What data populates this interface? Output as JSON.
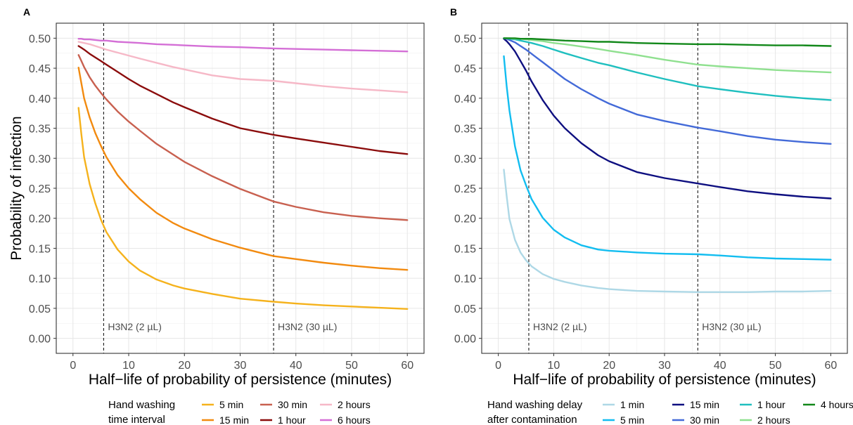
{
  "chart_data": [
    {
      "panel": "A",
      "type": "line",
      "xlabel": "Half−life of probability of persistence (minutes)",
      "ylabel": "Probability of infection",
      "xlim": [
        -3,
        63
      ],
      "ylim": [
        -0.025,
        0.525
      ],
      "xticks": [
        0,
        10,
        20,
        30,
        40,
        50,
        60
      ],
      "yticks": [
        0.0,
        0.05,
        0.1,
        0.15,
        0.2,
        0.25,
        0.3,
        0.35,
        0.4,
        0.45,
        0.5
      ],
      "grid": true,
      "reference_lines": [
        {
          "x": 5.5,
          "label_prefix": "H3N2 (2 ",
          "label_unit": "µL",
          "label_suffix": ")"
        },
        {
          "x": 36,
          "label_prefix": "H3N2 (30 ",
          "label_unit": "µL",
          "label_suffix": ")"
        }
      ],
      "legend": {
        "position": "bottom",
        "title": [
          "Hand washing",
          "time interval"
        ]
      },
      "x": [
        1,
        1.5,
        2,
        3,
        4,
        5,
        6,
        8,
        10,
        12,
        15,
        18,
        20,
        25,
        30,
        36,
        40,
        45,
        50,
        55,
        60
      ],
      "series": [
        {
          "name": "5 min",
          "color": "#f5b21c",
          "values": [
            0.384,
            0.34,
            0.302,
            0.257,
            0.225,
            0.198,
            0.177,
            0.148,
            0.128,
            0.113,
            0.098,
            0.088,
            0.083,
            0.074,
            0.066,
            0.061,
            0.058,
            0.055,
            0.053,
            0.051,
            0.049
          ]
        },
        {
          "name": "15 min",
          "color": "#f28a0f",
          "values": [
            0.451,
            0.425,
            0.4,
            0.368,
            0.342,
            0.321,
            0.302,
            0.272,
            0.25,
            0.232,
            0.209,
            0.192,
            0.183,
            0.165,
            0.151,
            0.137,
            0.132,
            0.126,
            0.121,
            0.117,
            0.114
          ]
        },
        {
          "name": "30 min",
          "color": "#c8604f",
          "values": [
            0.472,
            0.462,
            0.452,
            0.435,
            0.421,
            0.409,
            0.398,
            0.378,
            0.361,
            0.346,
            0.324,
            0.306,
            0.294,
            0.27,
            0.249,
            0.228,
            0.219,
            0.21,
            0.204,
            0.2,
            0.197
          ]
        },
        {
          "name": "1 hour",
          "color": "#8b0c0c",
          "values": [
            0.487,
            0.484,
            0.481,
            0.474,
            0.468,
            0.462,
            0.456,
            0.444,
            0.432,
            0.421,
            0.407,
            0.393,
            0.385,
            0.366,
            0.35,
            0.339,
            0.333,
            0.326,
            0.319,
            0.312,
            0.307
          ]
        },
        {
          "name": "2 hours",
          "color": "#f6b8c7",
          "values": [
            0.494,
            0.493,
            0.492,
            0.49,
            0.487,
            0.484,
            0.481,
            0.476,
            0.471,
            0.466,
            0.459,
            0.452,
            0.448,
            0.438,
            0.432,
            0.429,
            0.425,
            0.42,
            0.416,
            0.413,
            0.41
          ]
        },
        {
          "name": "6 hours",
          "color": "#d46fd6",
          "values": [
            0.499,
            0.499,
            0.498,
            0.498,
            0.497,
            0.496,
            0.496,
            0.494,
            0.493,
            0.492,
            0.49,
            0.489,
            0.488,
            0.486,
            0.485,
            0.483,
            0.482,
            0.481,
            0.48,
            0.479,
            0.478
          ]
        }
      ]
    },
    {
      "panel": "B",
      "type": "line",
      "xlabel": "Half−life of probability of persistence (minutes)",
      "ylabel": "",
      "xlim": [
        -3,
        63
      ],
      "ylim": [
        -0.025,
        0.525
      ],
      "xticks": [
        0,
        10,
        20,
        30,
        40,
        50,
        60
      ],
      "yticks": [
        0.0,
        0.05,
        0.1,
        0.15,
        0.2,
        0.25,
        0.3,
        0.35,
        0.4,
        0.45,
        0.5
      ],
      "grid": true,
      "reference_lines": [
        {
          "x": 5.5,
          "label_prefix": "H3N2 (2 ",
          "label_unit": "µL",
          "label_suffix": ")"
        },
        {
          "x": 36,
          "label_prefix": "H3N2 (30 ",
          "label_unit": "µL",
          "label_suffix": ")"
        }
      ],
      "legend": {
        "position": "bottom",
        "title": [
          "Hand washing delay",
          "after contamination"
        ]
      },
      "x": [
        1,
        1.5,
        2,
        3,
        4,
        5,
        6,
        8,
        10,
        12,
        15,
        18,
        20,
        25,
        30,
        36,
        40,
        45,
        50,
        55,
        60
      ],
      "series": [
        {
          "name": "1 min",
          "color": "#aed8e6",
          "values": [
            0.281,
            0.237,
            0.199,
            0.164,
            0.143,
            0.13,
            0.12,
            0.107,
            0.099,
            0.094,
            0.088,
            0.084,
            0.082,
            0.079,
            0.078,
            0.077,
            0.077,
            0.077,
            0.078,
            0.078,
            0.079
          ]
        },
        {
          "name": "5 min",
          "color": "#12bdf0",
          "values": [
            0.47,
            0.42,
            0.38,
            0.32,
            0.28,
            0.255,
            0.232,
            0.201,
            0.181,
            0.168,
            0.155,
            0.148,
            0.146,
            0.143,
            0.141,
            0.14,
            0.138,
            0.135,
            0.133,
            0.132,
            0.131
          ]
        },
        {
          "name": "15 min",
          "color": "#0e0f80",
          "values": [
            0.499,
            0.495,
            0.49,
            0.478,
            0.462,
            0.446,
            0.428,
            0.397,
            0.371,
            0.35,
            0.325,
            0.305,
            0.295,
            0.277,
            0.267,
            0.258,
            0.252,
            0.245,
            0.24,
            0.236,
            0.233
          ]
        },
        {
          "name": "30 min",
          "color": "#436ad8",
          "values": [
            0.5,
            0.499,
            0.497,
            0.493,
            0.487,
            0.481,
            0.474,
            0.46,
            0.446,
            0.432,
            0.415,
            0.4,
            0.391,
            0.373,
            0.362,
            0.351,
            0.345,
            0.337,
            0.331,
            0.327,
            0.324
          ]
        },
        {
          "name": "1 hour",
          "color": "#1fbfbf",
          "values": [
            0.5,
            0.5,
            0.499,
            0.498,
            0.496,
            0.494,
            0.492,
            0.487,
            0.481,
            0.475,
            0.467,
            0.459,
            0.455,
            0.443,
            0.432,
            0.42,
            0.415,
            0.409,
            0.404,
            0.4,
            0.397
          ]
        },
        {
          "name": "2 hours",
          "color": "#8fe08f",
          "values": [
            0.5,
            0.5,
            0.5,
            0.499,
            0.499,
            0.498,
            0.497,
            0.495,
            0.492,
            0.49,
            0.486,
            0.482,
            0.479,
            0.472,
            0.464,
            0.456,
            0.453,
            0.45,
            0.447,
            0.445,
            0.443
          ]
        },
        {
          "name": "4 hours",
          "color": "#12881a",
          "values": [
            0.5,
            0.5,
            0.5,
            0.5,
            0.499,
            0.499,
            0.499,
            0.498,
            0.497,
            0.496,
            0.495,
            0.494,
            0.494,
            0.492,
            0.491,
            0.49,
            0.49,
            0.489,
            0.488,
            0.488,
            0.487
          ]
        }
      ]
    }
  ]
}
